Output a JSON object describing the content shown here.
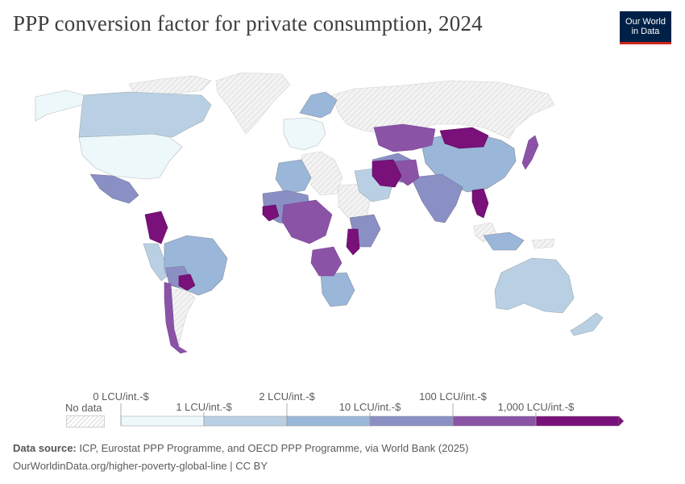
{
  "header": {
    "title": "PPP conversion factor for private consumption, 2024",
    "logo_line1": "Our World",
    "logo_line2": "in Data"
  },
  "legend": {
    "no_data_label": "No data",
    "upper_labels": [
      "0 LCU/int.-$",
      "2 LCU/int.-$",
      "100 LCU/int.-$"
    ],
    "lower_labels": [
      "1 LCU/int.-$",
      "10 LCU/int.-$",
      "1,000 LCU/int.-$"
    ],
    "bins": [
      {
        "from": "0 LCU/int.-$",
        "to": "1 LCU/int.-$",
        "color": "#edf8fb"
      },
      {
        "from": "1 LCU/int.-$",
        "to": "2 LCU/int.-$",
        "color": "#b9d0e4"
      },
      {
        "from": "2 LCU/int.-$",
        "to": "10 LCU/int.-$",
        "color": "#9ab7d9"
      },
      {
        "from": "10 LCU/int.-$",
        "to": "100 LCU/int.-$",
        "color": "#8a8fc4"
      },
      {
        "from": "100 LCU/int.-$",
        "to": "1,000 LCU/int.-$",
        "color": "#8a53a6"
      },
      {
        "from": "1,000 LCU/int.-$",
        "to": "",
        "color": "#7a107a"
      }
    ],
    "no_data_color": "#e6e6e6"
  },
  "footer": {
    "source_prefix": "Data source:",
    "source_text": " ICP, Eurostat PPP Programme, and OECD PPP Programme, via World Bank (2025)",
    "link_text": "OurWorldinData.org/higher-poverty-global-line | CC BY"
  }
}
